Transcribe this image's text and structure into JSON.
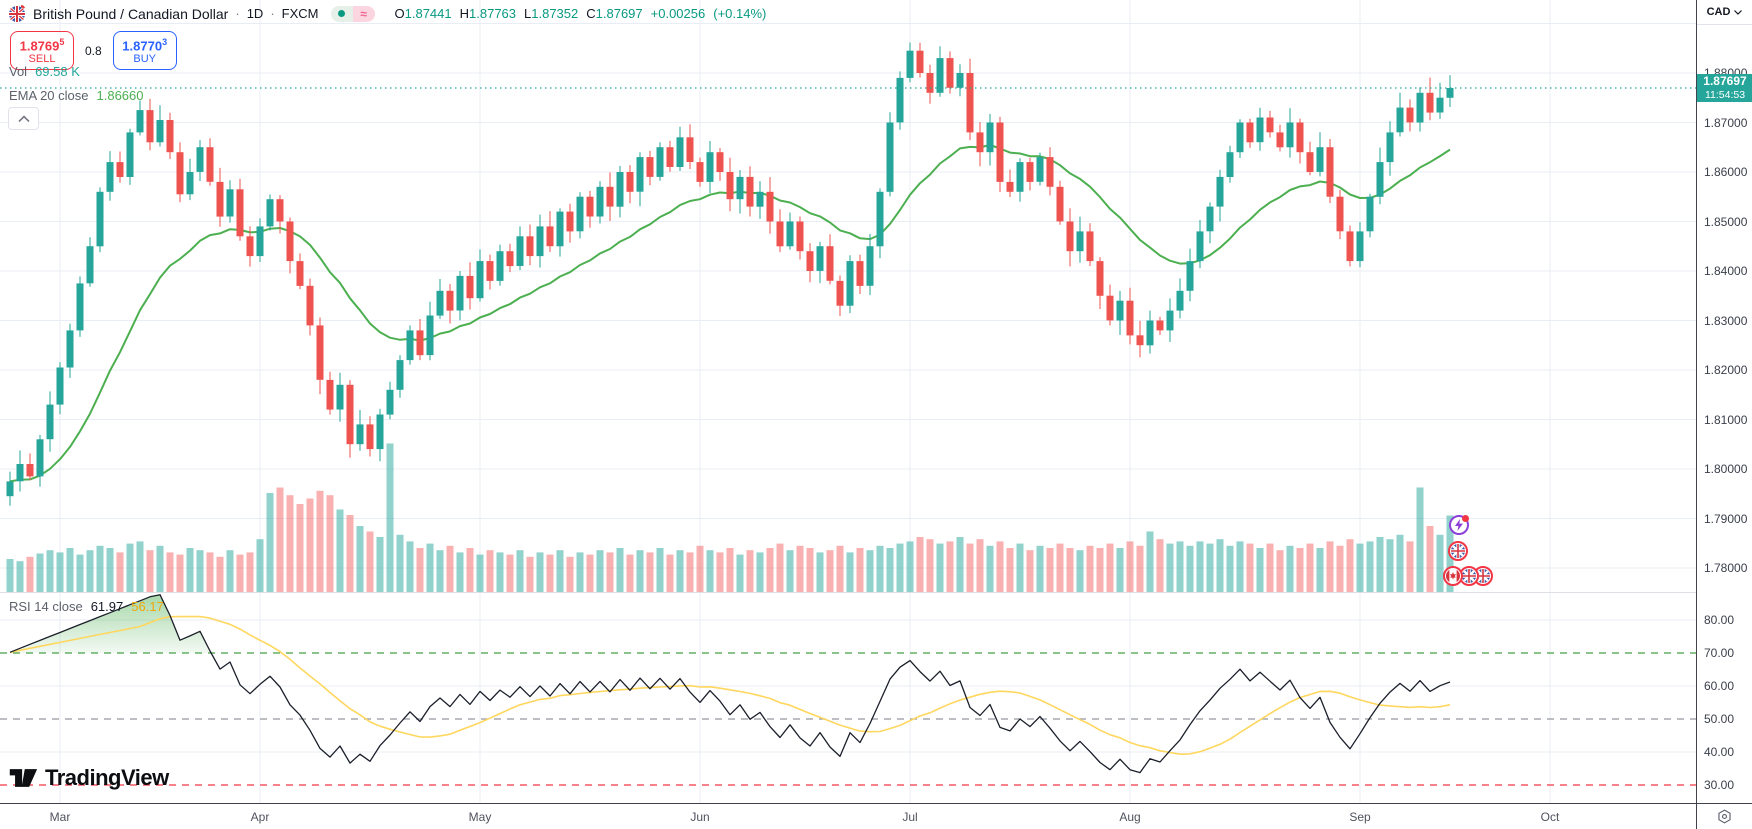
{
  "header": {
    "title": "British Pound / Canadian Dollar",
    "sep": "·",
    "interval": "1D",
    "exchange": "FXCM",
    "approx_badge": "≈",
    "ohlc": {
      "o_label": "O",
      "o": "1.87441",
      "h_label": "H",
      "h": "1.87763",
      "l_label": "L",
      "l": "1.87352",
      "c_label": "C",
      "c": "1.87697",
      "change": "+0.00256",
      "change_pct": "(+0.14%)"
    }
  },
  "trade_panel": {
    "sell_price": "1.8769",
    "sell_sup": "5",
    "sell_label": "SELL",
    "spread": "0.8",
    "buy_price": "1.8770",
    "buy_sup": "3",
    "buy_label": "BUY"
  },
  "indicators": {
    "volume": {
      "label": "Vol",
      "value": "69.58 K"
    },
    "ema": {
      "label": "EMA 20 close",
      "value": "1.86660"
    },
    "rsi": {
      "label": "RSI 14 close",
      "value": "61.97",
      "ma_value": "56.17"
    }
  },
  "price_axis": {
    "currency": "CAD",
    "last_price": "1.87697",
    "countdown": "11:54:53",
    "ticks": [
      "1.88000",
      "1.87000",
      "1.86000",
      "1.85000",
      "1.84000",
      "1.83000",
      "1.82000",
      "1.81000",
      "1.80000",
      "1.79000",
      "1.78000"
    ],
    "rsi_ticks": [
      "80.00",
      "70.00",
      "60.00",
      "50.00",
      "40.00",
      "30.00"
    ]
  },
  "logo": {
    "brand": "TradingView"
  },
  "icons": {
    "symbol": "gbp-cad-flag-icon",
    "status": [
      "market-dot-icon",
      "approx-data-icon"
    ],
    "collapse": "chevron-up-icon",
    "currency_menu": "chevron-down-icon",
    "axis_settings": "gear-icon",
    "events": [
      "lightning-bolt-icon",
      "uk-flag-icon",
      "canada-flag-icon",
      "uk-flag-icon",
      "uk-flag-icon"
    ]
  },
  "chart_data": {
    "type": "candlestick",
    "title": "British Pound / Canadian Dollar, 1D, FXCM",
    "panes": [
      "price+volume+ema20",
      "rsi14+sma14"
    ],
    "y_axis": {
      "min": 1.78,
      "max": 1.88,
      "step": 0.01,
      "grid_top": 1.89
    },
    "rsi_axis": {
      "min": 30,
      "max": 80,
      "step": 10,
      "upper_band": 70,
      "mid_band": 50,
      "lower_band": 30
    },
    "current_price": 1.87697,
    "ema_period": 20,
    "rsi_period": 14,
    "colors": {
      "up": "#26a69a",
      "down": "#ef5350",
      "vol_up": "rgba(38,166,154,0.5)",
      "vol_down": "rgba(239,83,80,0.45)",
      "ema": "#4caf50",
      "rsi": "#1b1f2a",
      "rsi_ma": "#ffd75e",
      "band_upper": "#43a047",
      "band_mid": "#9598a1",
      "band_lower": "#f23645",
      "grid": "#e9eef6",
      "last_price_line": "#26a69a"
    },
    "months": [
      {
        "label": "Mar",
        "index": 5
      },
      {
        "label": "Apr",
        "index": 25
      },
      {
        "label": "May",
        "index": 47
      },
      {
        "label": "Jun",
        "index": 69
      },
      {
        "label": "Jul",
        "index": 90
      },
      {
        "label": "Aug",
        "index": 112
      },
      {
        "label": "Sep",
        "index": 135
      },
      {
        "label": "Oct",
        "index": 154
      }
    ],
    "closes": [
      1.7975,
      1.801,
      1.7985,
      1.806,
      1.813,
      1.8205,
      1.828,
      1.8375,
      1.845,
      1.856,
      1.862,
      1.859,
      1.868,
      1.8725,
      1.866,
      1.8705,
      1.864,
      1.8555,
      1.86,
      1.865,
      1.858,
      1.851,
      1.8565,
      1.847,
      1.843,
      1.849,
      1.8545,
      1.85,
      1.842,
      1.837,
      1.829,
      1.818,
      1.812,
      1.817,
      1.805,
      1.809,
      1.804,
      1.811,
      1.816,
      1.822,
      1.828,
      1.823,
      1.831,
      1.836,
      1.832,
      1.839,
      1.8345,
      1.842,
      1.838,
      1.844,
      1.841,
      1.847,
      1.843,
      1.849,
      1.845,
      1.852,
      1.848,
      1.855,
      1.851,
      1.857,
      1.853,
      1.86,
      1.856,
      1.863,
      1.859,
      1.865,
      1.861,
      1.867,
      1.862,
      1.858,
      1.864,
      1.86,
      1.8545,
      1.859,
      1.853,
      1.856,
      1.85,
      1.845,
      1.85,
      1.844,
      1.84,
      1.845,
      1.838,
      1.833,
      1.842,
      1.837,
      1.845,
      1.856,
      1.87,
      1.879,
      1.8845,
      1.88,
      1.876,
      1.883,
      1.877,
      1.88,
      1.868,
      1.864,
      1.87,
      1.858,
      1.856,
      1.862,
      1.858,
      1.863,
      1.857,
      1.85,
      1.844,
      1.848,
      1.842,
      1.835,
      1.83,
      1.834,
      1.827,
      1.825,
      1.83,
      1.828,
      1.832,
      1.836,
      1.842,
      1.848,
      1.853,
      1.859,
      1.864,
      1.87,
      1.866,
      1.871,
      1.868,
      1.865,
      1.87,
      1.864,
      1.86,
      1.865,
      1.855,
      1.848,
      1.842,
      1.848,
      1.855,
      1.862,
      1.868,
      1.873,
      1.87,
      1.876,
      1.872,
      1.875,
      1.87697
    ],
    "volumes_k": [
      30,
      28,
      32,
      35,
      38,
      36,
      40,
      34,
      38,
      42,
      40,
      36,
      44,
      46,
      38,
      42,
      36,
      34,
      40,
      38,
      36,
      32,
      38,
      34,
      36,
      48,
      90,
      95,
      88,
      80,
      85,
      92,
      88,
      75,
      70,
      60,
      55,
      50,
      135,
      52,
      46,
      40,
      44,
      38,
      42,
      36,
      40,
      34,
      38,
      36,
      34,
      38,
      32,
      36,
      34,
      38,
      32,
      36,
      34,
      38,
      36,
      40,
      34,
      38,
      36,
      40,
      34,
      38,
      36,
      42,
      38,
      36,
      40,
      34,
      38,
      36,
      40,
      44,
      38,
      42,
      40,
      36,
      38,
      42,
      36,
      40,
      38,
      42,
      40,
      44,
      46,
      50,
      48,
      44,
      46,
      50,
      44,
      48,
      42,
      46,
      40,
      44,
      38,
      42,
      40,
      44,
      40,
      38,
      42,
      40,
      44,
      40,
      46,
      42,
      55,
      48,
      44,
      46,
      42,
      46,
      44,
      48,
      42,
      46,
      44,
      40,
      44,
      38,
      42,
      40,
      44,
      40,
      46,
      42,
      48,
      44,
      46,
      50,
      48,
      52,
      46,
      95,
      60,
      52,
      69.58
    ]
  }
}
